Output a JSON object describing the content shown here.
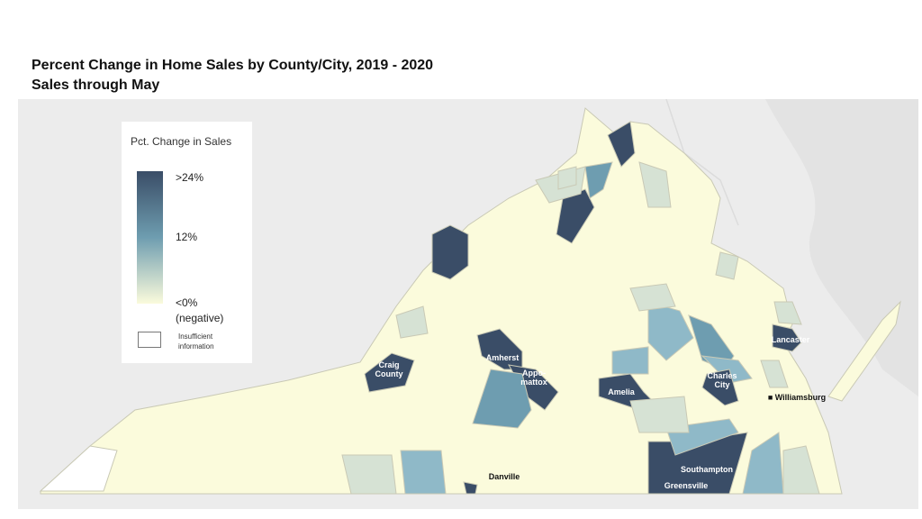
{
  "title": "Percent Change in Home Sales by County/City, 2019 - 2020",
  "subtitle": "Sales through May",
  "legend": {
    "title": "Pct. Change in Sales",
    "high": ">24%",
    "mid": "12%",
    "low": "<0%",
    "low_note": "(negative)",
    "na": "Insufficient information"
  },
  "colors": {
    "high": "#3a4d67",
    "mid": "#6e9db0",
    "low": "#fbfbdc",
    "na": "#ffffff",
    "land": "#ececec"
  },
  "labels": [
    {
      "name": "Craig County",
      "level": ">24%"
    },
    {
      "name": "Amherst",
      "level": ">24%"
    },
    {
      "name": "Appo-mattox",
      "level": ">24%"
    },
    {
      "name": "Amelia",
      "level": ">24%"
    },
    {
      "name": "Charles City",
      "level": ">24%"
    },
    {
      "name": "Lancaster",
      "level": ">24%"
    },
    {
      "name": "Southampton",
      "level": ">24%"
    },
    {
      "name": "Greensville",
      "level": ">24%"
    },
    {
      "name": "Danville",
      "level": ">24%"
    },
    {
      "name": "Williamsburg",
      "level": ">24%"
    }
  ]
}
